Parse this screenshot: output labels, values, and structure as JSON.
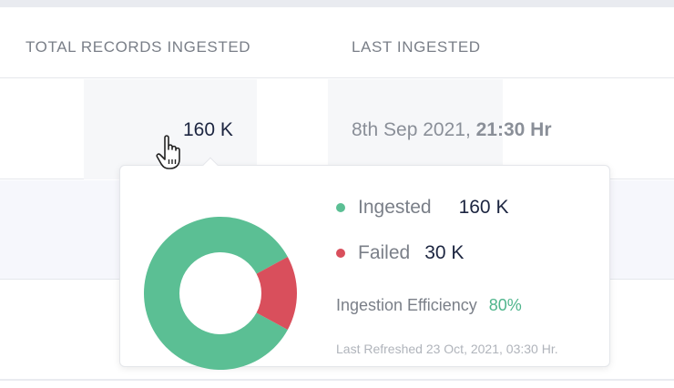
{
  "table": {
    "headers": {
      "records": "TOTAL RECORDS INGESTED",
      "last": "LAST INGESTED"
    },
    "row1": {
      "records": "160 K",
      "last_date": "8th Sep 2021,",
      "last_time": "21:30 Hr"
    }
  },
  "tooltip": {
    "ingested": {
      "label": "Ingested",
      "value": "160 K",
      "raw": 160,
      "color": "#5bbf94"
    },
    "failed": {
      "label": "Failed",
      "value": "30 K",
      "raw": 30,
      "color": "#d94f5c"
    },
    "efficiency": {
      "label": "Ingestion Efficiency",
      "value": "80%",
      "color": "#4fb58c"
    },
    "refreshed": "Last Refreshed 23 Oct, 2021, 03:30 Hr."
  },
  "icons": {
    "cursor": "hand-pointer-icon"
  }
}
